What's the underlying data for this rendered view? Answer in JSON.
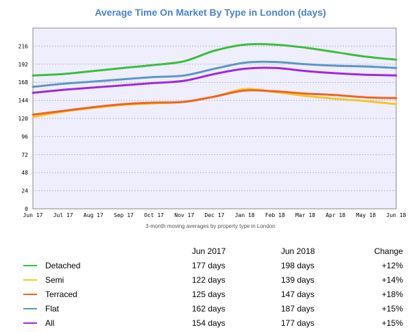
{
  "chart_data": {
    "type": "line",
    "title": "Average Time On Market By Type in London (days)",
    "subtitle": "3-month moving averages by property type in London",
    "categories": [
      "Jun 17",
      "Jul 17",
      "Aug 17",
      "Sep 17",
      "Oct 17",
      "Nov 17",
      "Dec 17",
      "Jan 18",
      "Feb 18",
      "Mar 18",
      "Apr 18",
      "May 18",
      "Jun 18"
    ],
    "y_ticks": [
      0,
      24,
      48,
      72,
      96,
      120,
      144,
      168,
      192,
      216
    ],
    "ylim": [
      0,
      240
    ],
    "grid": true,
    "plot_background": "#eeeefc",
    "series": [
      {
        "name": "Detached",
        "color": "#3cbe3c",
        "values": [
          177,
          179,
          183,
          187,
          191,
          196,
          210,
          218,
          218,
          214,
          208,
          202,
          198
        ]
      },
      {
        "name": "Semi",
        "color": "#f0c828",
        "values": [
          122,
          129,
          134,
          138,
          140,
          142,
          149,
          159,
          155,
          150,
          146,
          143,
          139
        ]
      },
      {
        "name": "Terraced",
        "color": "#f0641e",
        "values": [
          125,
          130,
          135,
          139,
          141,
          142,
          149,
          157,
          156,
          153,
          151,
          148,
          147
        ]
      },
      {
        "name": "Flat",
        "color": "#5a96c8",
        "values": [
          162,
          166,
          169,
          172,
          175,
          177,
          186,
          194,
          195,
          192,
          190,
          189,
          187
        ]
      },
      {
        "name": "All",
        "color": "#a028dc",
        "values": [
          154,
          158,
          161,
          164,
          167,
          170,
          179,
          186,
          187,
          183,
          180,
          178,
          177
        ]
      }
    ]
  },
  "table": {
    "headers": {
      "from": "Jun 2017",
      "to": "Jun 2018",
      "change": "Change"
    },
    "rows": [
      {
        "name": "Detached",
        "color": "#3cbe3c",
        "from": "177 days",
        "to": "198 days",
        "change": "+12%"
      },
      {
        "name": "Semi",
        "color": "#f0c828",
        "from": "122 days",
        "to": "139 days",
        "change": "+14%"
      },
      {
        "name": "Terraced",
        "color": "#f0641e",
        "from": "125 days",
        "to": "147 days",
        "change": "+18%"
      },
      {
        "name": "Flat",
        "color": "#5a96c8",
        "from": "162 days",
        "to": "187 days",
        "change": "+15%"
      },
      {
        "name": "All",
        "color": "#a028dc",
        "from": "154 days",
        "to": "177 days",
        "change": "+15%"
      }
    ]
  }
}
